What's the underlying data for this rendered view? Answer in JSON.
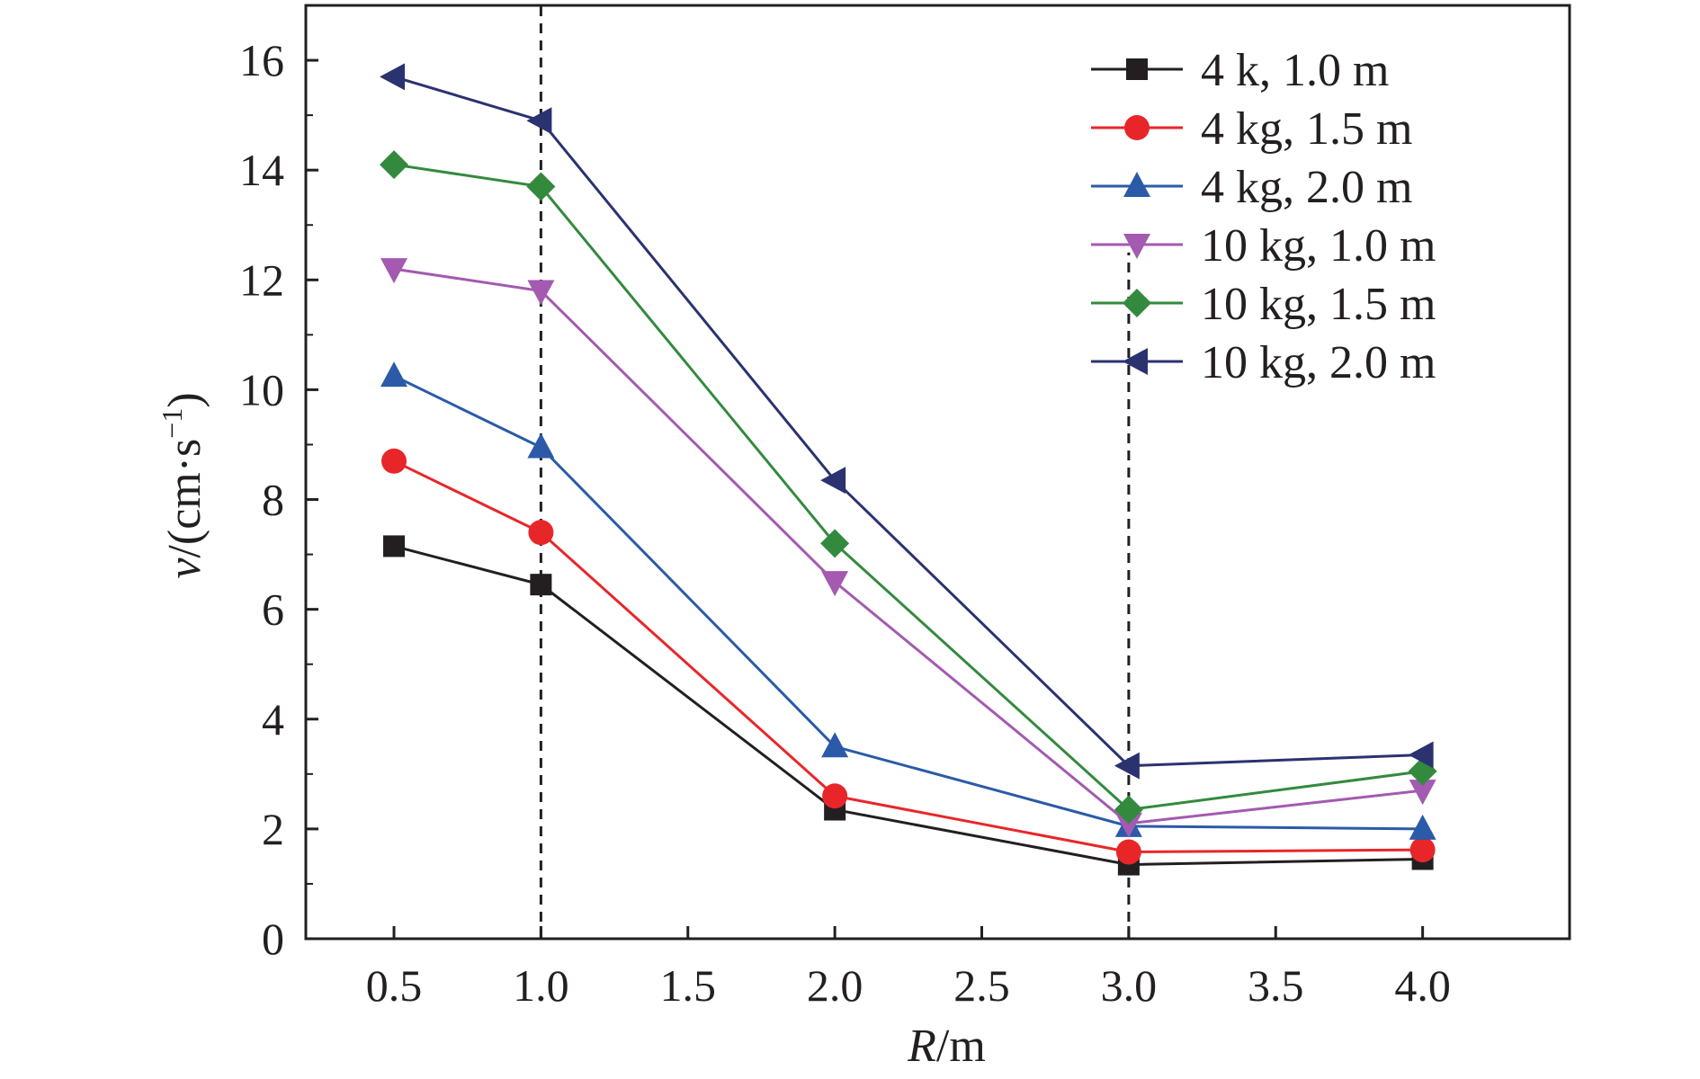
{
  "chart_data": {
    "type": "line",
    "x": [
      0.5,
      1.0,
      2.0,
      3.0,
      4.0
    ],
    "xlabel": {
      "var": "R",
      "unit": "/m"
    },
    "ylabel": {
      "var": "v",
      "unit": "/(cm·s",
      "sup": "−1",
      "close": ")"
    },
    "xlim": [
      0.2,
      4.5
    ],
    "ylim": [
      0,
      17
    ],
    "xticks": [
      "0.5",
      "1.0",
      "1.5",
      "2.0",
      "2.5",
      "3.0",
      "3.5",
      "4.0"
    ],
    "xtick_values": [
      0.5,
      1.0,
      1.5,
      2.0,
      2.5,
      3.0,
      3.5,
      4.0
    ],
    "yticks": [
      "0",
      "2",
      "4",
      "6",
      "8",
      "10",
      "12",
      "14",
      "16"
    ],
    "ytick_values": [
      0,
      2,
      4,
      6,
      8,
      10,
      12,
      14,
      16
    ],
    "vlines": [
      {
        "x": 1.0,
        "y_to": 17
      },
      {
        "x": 3.0,
        "y_to": 12.5
      }
    ],
    "legend_position": "top-right",
    "grid": false,
    "series": [
      {
        "name": "4 k, 1.0 m",
        "marker": "square",
        "color": "#231f20",
        "values": [
          7.15,
          6.45,
          2.35,
          1.35,
          1.45
        ]
      },
      {
        "name": "4 kg, 1.5 m",
        "marker": "circle",
        "color": "#e8262a",
        "values": [
          8.7,
          7.4,
          2.6,
          1.58,
          1.62
        ]
      },
      {
        "name": "4 kg, 2.0 m",
        "marker": "triangle-up",
        "color": "#2b5aa8",
        "values": [
          10.25,
          8.95,
          3.5,
          2.05,
          2.0
        ]
      },
      {
        "name": "10 kg, 1.0 m",
        "marker": "triangle-down",
        "color": "#a35ab0",
        "values": [
          12.2,
          11.8,
          6.5,
          2.1,
          2.7
        ]
      },
      {
        "name": "10 kg, 1.5 m",
        "marker": "diamond",
        "color": "#338a3e",
        "values": [
          14.1,
          13.7,
          7.2,
          2.35,
          3.05
        ]
      },
      {
        "name": "10 kg, 2.0 m",
        "marker": "triangle-left",
        "color": "#2b3270",
        "values": [
          15.7,
          14.9,
          8.35,
          3.15,
          3.35
        ]
      }
    ]
  }
}
